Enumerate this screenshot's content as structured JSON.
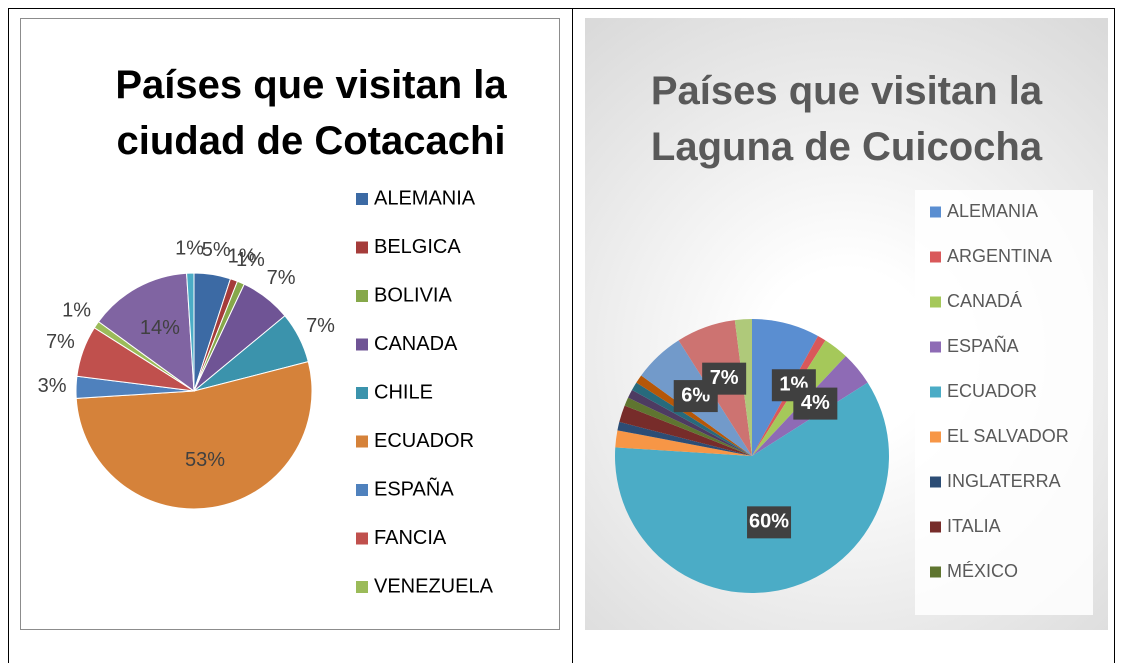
{
  "chart_data": [
    {
      "type": "pie",
      "title": "Países que visitan la ciudad de Cotacachi",
      "categories": [
        "ALEMANIA",
        "BELGICA",
        "BOLIVIA",
        "CANADA",
        "CHILE",
        "ECUADOR",
        "ESPAÑA",
        "FANCIA",
        "VENEZUELA",
        null,
        null
      ],
      "values": [
        5,
        1,
        1,
        7,
        7,
        53,
        3,
        7,
        1,
        14,
        1
      ],
      "value_labels": [
        "5%",
        "1%",
        "1%",
        "7%",
        "7%",
        "53%",
        "3%",
        "7%",
        "1%",
        "14%",
        "1%"
      ],
      "colors": [
        "#3c6aa4",
        "#a53c3a",
        "#86a84a",
        "#6f5495",
        "#3b93ac",
        "#d5823a",
        "#4f81bd",
        "#c0504d",
        "#9bbb59",
        "#8064a2",
        "#4bacc6"
      ]
    },
    {
      "type": "pie",
      "title": "Países que visitan la Laguna de Cuicocha",
      "categories": [
        "ALEMANIA",
        "ARGENTINA",
        "CANADÁ",
        "ESPAÑA",
        "ECUADOR",
        "EL SALVADOR",
        "INGLATERRA",
        "ITALIA",
        "MÉXICO",
        null,
        null,
        null,
        null,
        null,
        null
      ],
      "values": [
        8,
        1,
        3,
        4,
        60,
        2,
        1,
        2,
        1,
        1,
        1,
        1,
        6,
        7,
        2
      ],
      "value_labels": [
        null,
        "1%",
        null,
        "4%",
        "60%",
        null,
        null,
        null,
        null,
        null,
        null,
        null,
        "6%",
        "7%",
        null
      ],
      "colors": [
        "#5a8ed1",
        "#d9585a",
        "#a5c85a",
        "#8e6bb5",
        "#4bacc6",
        "#f79646",
        "#2c4d75",
        "#772c2a",
        "#5f7530",
        "#4d3b62",
        "#276a7c",
        "#b65708",
        "#729aca",
        "#cd7371",
        "#afc97a"
      ]
    }
  ]
}
